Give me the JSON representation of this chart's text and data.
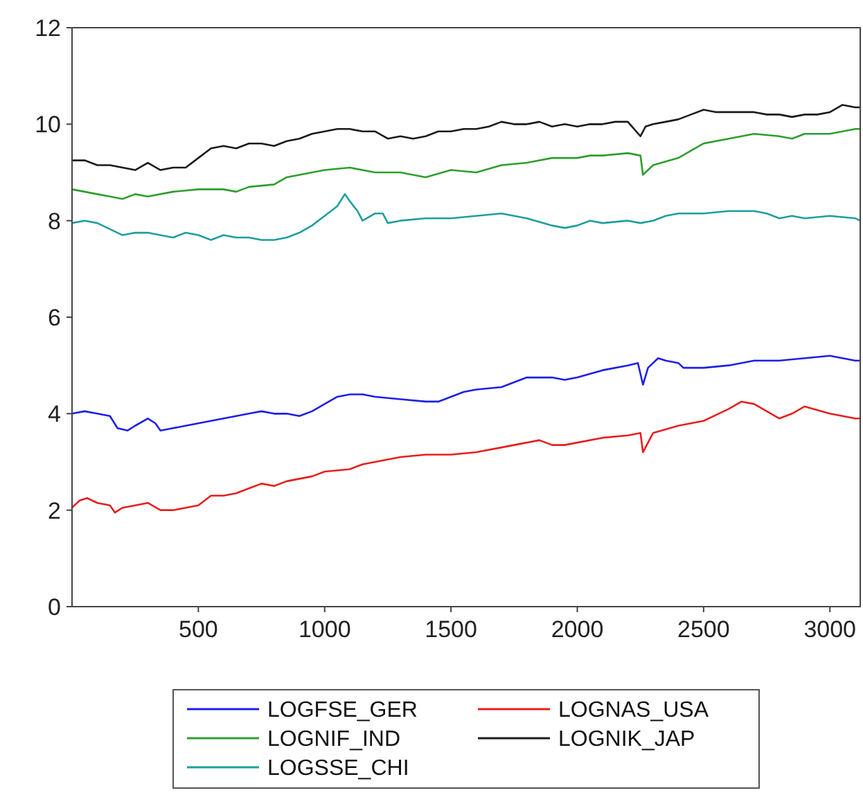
{
  "chart_data": {
    "type": "line",
    "xlim": [
      0,
      3120
    ],
    "xticks": [
      500,
      1000,
      1500,
      2000,
      2500,
      3000
    ],
    "ylim": [
      0,
      12
    ],
    "yticks": [
      0,
      2,
      4,
      6,
      8,
      10,
      12
    ],
    "grid": false,
    "legend": "bottom",
    "line_style": "solid",
    "marker": "none",
    "series": [
      {
        "name": "LOGFSE_GER",
        "color": "#1f1fe6",
        "x": [
          0,
          50,
          100,
          150,
          180,
          220,
          250,
          300,
          330,
          350,
          400,
          450,
          500,
          550,
          600,
          650,
          700,
          750,
          800,
          850,
          900,
          950,
          1000,
          1050,
          1100,
          1150,
          1200,
          1300,
          1400,
          1450,
          1500,
          1550,
          1600,
          1700,
          1800,
          1850,
          1900,
          1950,
          2000,
          2100,
          2200,
          2240,
          2260,
          2280,
          2320,
          2350,
          2400,
          2420,
          2500,
          2600,
          2700,
          2800,
          2900,
          3000,
          3100,
          3120
        ],
        "values": [
          4.0,
          4.05,
          4.0,
          3.95,
          3.7,
          3.65,
          3.75,
          3.9,
          3.8,
          3.65,
          3.7,
          3.75,
          3.8,
          3.85,
          3.9,
          3.95,
          4.0,
          4.05,
          4.0,
          4.0,
          3.95,
          4.05,
          4.2,
          4.35,
          4.4,
          4.4,
          4.35,
          4.3,
          4.25,
          4.25,
          4.35,
          4.45,
          4.5,
          4.55,
          4.75,
          4.75,
          4.75,
          4.7,
          4.75,
          4.9,
          5.0,
          5.05,
          4.6,
          4.95,
          5.15,
          5.1,
          5.05,
          4.95,
          4.95,
          5.0,
          5.1,
          5.1,
          5.15,
          5.2,
          5.1,
          5.1
        ]
      },
      {
        "name": "LOGNAS_USA",
        "color": "#e61f1f",
        "x": [
          0,
          30,
          60,
          100,
          150,
          170,
          200,
          250,
          300,
          350,
          400,
          450,
          500,
          550,
          600,
          650,
          700,
          750,
          800,
          850,
          900,
          950,
          1000,
          1100,
          1150,
          1200,
          1250,
          1300,
          1400,
          1500,
          1600,
          1700,
          1800,
          1850,
          1900,
          1950,
          2000,
          2100,
          2200,
          2250,
          2260,
          2300,
          2400,
          2500,
          2600,
          2650,
          2700,
          2750,
          2800,
          2850,
          2900,
          3000,
          3100,
          3120
        ],
        "values": [
          2.05,
          2.2,
          2.25,
          2.15,
          2.1,
          1.95,
          2.05,
          2.1,
          2.15,
          2.0,
          2.0,
          2.05,
          2.1,
          2.3,
          2.3,
          2.35,
          2.45,
          2.55,
          2.5,
          2.6,
          2.65,
          2.7,
          2.8,
          2.85,
          2.95,
          3.0,
          3.05,
          3.1,
          3.15,
          3.15,
          3.2,
          3.3,
          3.4,
          3.45,
          3.35,
          3.35,
          3.4,
          3.5,
          3.55,
          3.6,
          3.2,
          3.6,
          3.75,
          3.85,
          4.1,
          4.25,
          4.2,
          4.05,
          3.9,
          4.0,
          4.15,
          4.0,
          3.9,
          3.9
        ]
      },
      {
        "name": "LOGNIF_IND",
        "color": "#2e9e2e",
        "x": [
          0,
          100,
          150,
          200,
          250,
          300,
          400,
          500,
          600,
          650,
          700,
          800,
          850,
          900,
          1000,
          1100,
          1200,
          1300,
          1400,
          1500,
          1600,
          1700,
          1800,
          1900,
          2000,
          2050,
          2100,
          2200,
          2250,
          2260,
          2300,
          2400,
          2500,
          2600,
          2700,
          2800,
          2850,
          2900,
          3000,
          3100,
          3120
        ],
        "values": [
          8.65,
          8.55,
          8.5,
          8.45,
          8.55,
          8.5,
          8.6,
          8.65,
          8.65,
          8.6,
          8.7,
          8.75,
          8.9,
          8.95,
          9.05,
          9.1,
          9.0,
          9.0,
          8.9,
          9.05,
          9.0,
          9.15,
          9.2,
          9.3,
          9.3,
          9.35,
          9.35,
          9.4,
          9.35,
          8.95,
          9.15,
          9.3,
          9.6,
          9.7,
          9.8,
          9.75,
          9.7,
          9.8,
          9.8,
          9.9,
          9.9
        ]
      },
      {
        "name": "LOGNIK_JAP",
        "color": "#1a1a1a",
        "x": [
          0,
          50,
          100,
          150,
          200,
          250,
          300,
          350,
          400,
          450,
          500,
          550,
          600,
          650,
          700,
          750,
          800,
          850,
          900,
          950,
          1000,
          1050,
          1100,
          1150,
          1200,
          1250,
          1300,
          1350,
          1400,
          1450,
          1500,
          1550,
          1600,
          1650,
          1700,
          1750,
          1800,
          1850,
          1900,
          1950,
          2000,
          2050,
          2100,
          2150,
          2200,
          2250,
          2270,
          2300,
          2350,
          2400,
          2450,
          2500,
          2550,
          2600,
          2650,
          2700,
          2750,
          2800,
          2850,
          2900,
          2950,
          3000,
          3050,
          3100,
          3120
        ],
        "values": [
          9.25,
          9.25,
          9.15,
          9.15,
          9.1,
          9.05,
          9.2,
          9.05,
          9.1,
          9.1,
          9.3,
          9.5,
          9.55,
          9.5,
          9.6,
          9.6,
          9.55,
          9.65,
          9.7,
          9.8,
          9.85,
          9.9,
          9.9,
          9.85,
          9.85,
          9.7,
          9.75,
          9.7,
          9.75,
          9.85,
          9.85,
          9.9,
          9.9,
          9.95,
          10.05,
          10.0,
          10.0,
          10.05,
          9.95,
          10.0,
          9.95,
          10.0,
          10.0,
          10.05,
          10.05,
          9.75,
          9.95,
          10.0,
          10.05,
          10.1,
          10.2,
          10.3,
          10.25,
          10.25,
          10.25,
          10.25,
          10.2,
          10.2,
          10.15,
          10.2,
          10.2,
          10.25,
          10.4,
          10.35,
          10.35
        ]
      },
      {
        "name": "LOGSSE_CHI",
        "color": "#1f9e9e",
        "x": [
          0,
          50,
          100,
          200,
          250,
          300,
          350,
          400,
          450,
          500,
          550,
          600,
          650,
          700,
          750,
          800,
          850,
          900,
          950,
          1000,
          1050,
          1080,
          1100,
          1130,
          1150,
          1200,
          1230,
          1250,
          1300,
          1400,
          1500,
          1600,
          1700,
          1800,
          1900,
          1950,
          2000,
          2050,
          2100,
          2200,
          2250,
          2300,
          2350,
          2400,
          2500,
          2600,
          2700,
          2750,
          2800,
          2850,
          2900,
          3000,
          3100,
          3120
        ],
        "values": [
          7.95,
          8.0,
          7.95,
          7.7,
          7.75,
          7.75,
          7.7,
          7.65,
          7.75,
          7.7,
          7.6,
          7.7,
          7.65,
          7.65,
          7.6,
          7.6,
          7.65,
          7.75,
          7.9,
          8.1,
          8.3,
          8.55,
          8.4,
          8.2,
          8.0,
          8.15,
          8.15,
          7.95,
          8.0,
          8.05,
          8.05,
          8.1,
          8.15,
          8.05,
          7.9,
          7.85,
          7.9,
          8.0,
          7.95,
          8.0,
          7.95,
          8.0,
          8.1,
          8.15,
          8.15,
          8.2,
          8.2,
          8.15,
          8.05,
          8.1,
          8.05,
          8.1,
          8.05,
          8.0
        ]
      }
    ]
  }
}
